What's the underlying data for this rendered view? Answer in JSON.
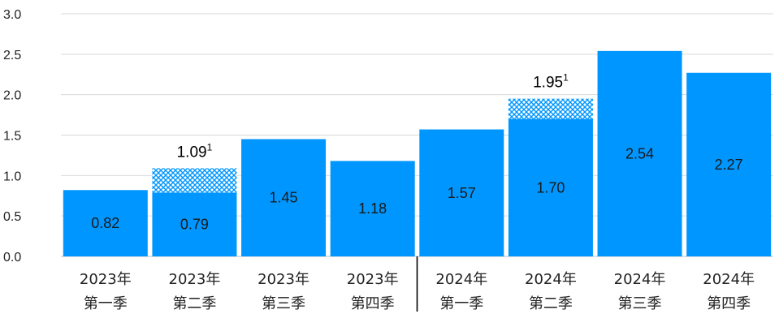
{
  "chart_data": {
    "type": "bar",
    "title": "",
    "xlabel": "",
    "ylabel": "",
    "ylim": [
      0,
      3.0
    ],
    "yticks": [
      "0.0",
      "0.5",
      "1.0",
      "1.5",
      "2.0",
      "2.5",
      "3.0"
    ],
    "grid": true,
    "categories": [
      [
        "2023年",
        "第一季"
      ],
      [
        "2023年",
        "第二季"
      ],
      [
        "2023年",
        "第三季"
      ],
      [
        "2023年",
        "第四季"
      ],
      [
        "2024年",
        "第一季"
      ],
      [
        "2024年",
        "第二季"
      ],
      [
        "2024年",
        "第三季"
      ],
      [
        "2024年",
        "第四季"
      ]
    ],
    "values": [
      0.82,
      0.79,
      1.45,
      1.18,
      1.57,
      1.7,
      2.54,
      2.27
    ],
    "value_labels": [
      "0.82",
      "0.79",
      "1.45",
      "1.18",
      "1.57",
      "1.70",
      "2.54",
      "2.27"
    ],
    "stacked_addition": [
      {
        "index": 1,
        "value": 0.3,
        "total": 1.09,
        "label": "1.09",
        "superscript": "1"
      },
      {
        "index": 5,
        "value": 0.25,
        "total": 1.95,
        "label": "1.95",
        "superscript": "1"
      }
    ],
    "colors": {
      "bar": "#0096FF",
      "hatch": "#0096FF",
      "text": "#222222"
    }
  }
}
